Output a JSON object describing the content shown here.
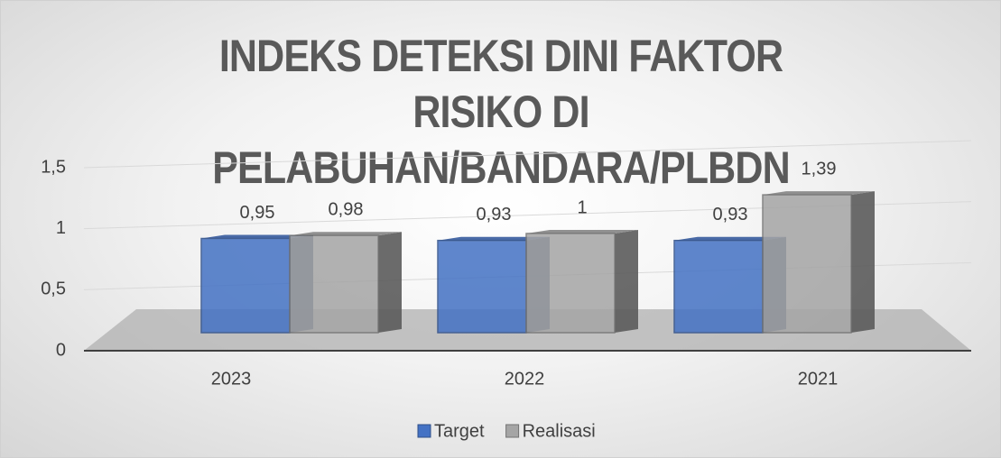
{
  "chart_data": {
    "type": "bar3d",
    "title": "INDEKS DETEKSI DINI FAKTOR RISIKO DI PELABUHAN/BANDARA/PLBDN",
    "categories": [
      "2023",
      "2022",
      "2021"
    ],
    "series": [
      {
        "name": "Target",
        "color": "#4472c4",
        "values": [
          0.95,
          0.93,
          0.93
        ],
        "value_labels": [
          "0,95",
          "0,93",
          "0,93"
        ]
      },
      {
        "name": "Realisasi",
        "color": "#a5a5a5",
        "values": [
          0.98,
          1,
          1.39
        ],
        "value_labels": [
          "0,98",
          "1",
          "1,39"
        ]
      }
    ],
    "ylim": [
      0,
      1.5
    ],
    "yticks": [
      0,
      {
        "value": 0.5,
        "label": "0,5"
      },
      1,
      {
        "value": 1.5,
        "label": "1,5"
      }
    ],
    "grid": true,
    "legend": "bottom"
  }
}
